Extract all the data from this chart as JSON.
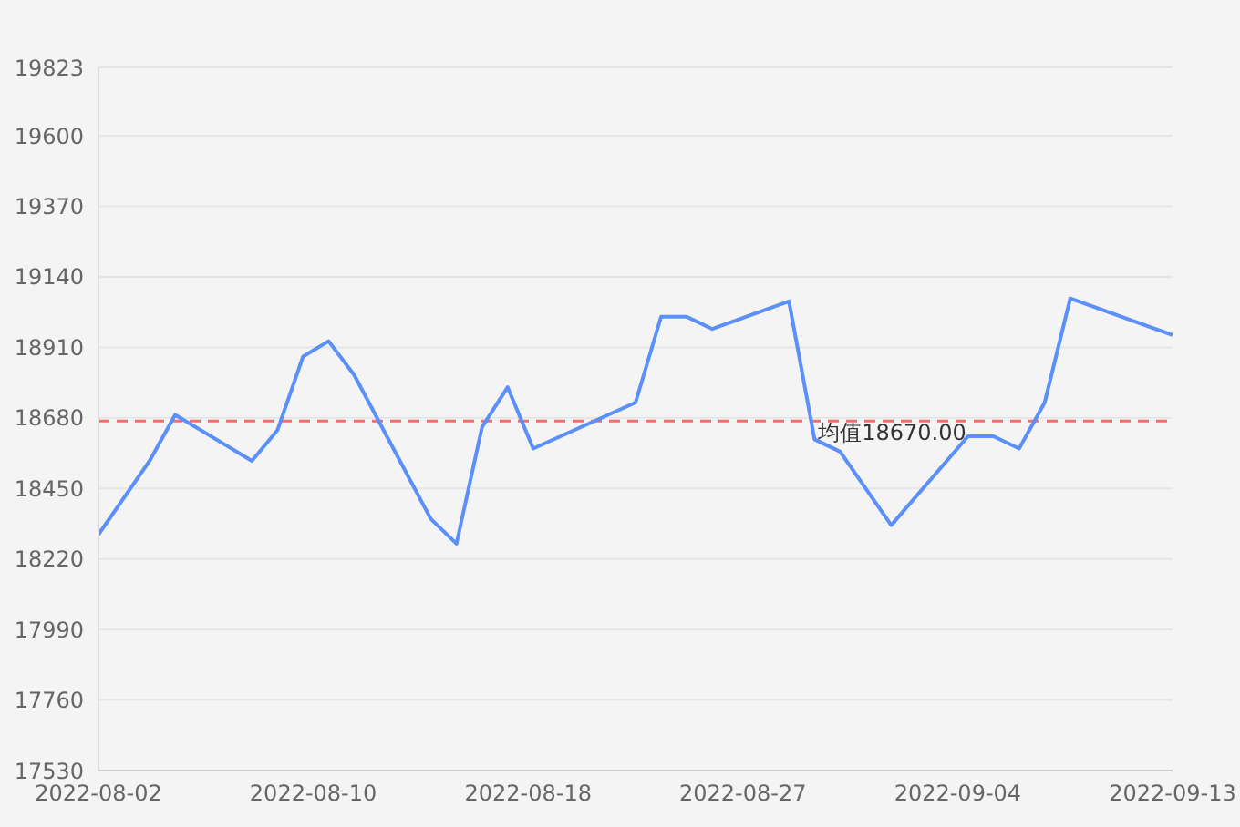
{
  "chart_data": {
    "type": "line",
    "x": [
      "2022-08-02",
      "2022-08-04",
      "2022-08-05",
      "2022-08-08",
      "2022-08-09",
      "2022-08-10",
      "2022-08-11",
      "2022-08-12",
      "2022-08-15",
      "2022-08-16",
      "2022-08-17",
      "2022-08-18",
      "2022-08-19",
      "2022-08-23",
      "2022-08-24",
      "2022-08-25",
      "2022-08-26",
      "2022-08-29",
      "2022-08-30",
      "2022-08-31",
      "2022-09-02",
      "2022-09-05",
      "2022-09-06",
      "2022-09-07",
      "2022-09-08",
      "2022-09-09",
      "2022-09-13"
    ],
    "series": [
      {
        "color": "#5b8ff9",
        "values": [
          18300,
          18540,
          18690,
          18540,
          18640,
          18880,
          18930,
          18820,
          18350,
          18270,
          18650,
          18780,
          18580,
          18730,
          19010,
          19010,
          18970,
          19060,
          18610,
          18570,
          18330,
          18620,
          18620,
          18580,
          18730,
          19070,
          18950
        ]
      }
    ],
    "xlim": [
      "2022-08-02",
      "2022-09-13"
    ],
    "xticks": [
      {
        "value": "2022-08-02",
        "label": "2022-08-02"
      },
      {
        "value": "2022-08-10T09:36",
        "label": "2022-08-10"
      },
      {
        "value": "2022-08-18T19:12",
        "label": "2022-08-18"
      },
      {
        "value": "2022-08-27T04:48",
        "label": "2022-08-27"
      },
      {
        "value": "2022-09-04T14:24",
        "label": "2022-09-04"
      },
      {
        "value": "2022-09-13",
        "label": "2022-09-13"
      }
    ],
    "ylim": [
      17530,
      19823
    ],
    "yticks": [
      17530,
      17760,
      17990,
      18220,
      18450,
      18680,
      18910,
      19140,
      19370,
      19600,
      19823
    ],
    "grid": "y",
    "marker": "none",
    "line_style": "solid",
    "ref_lines": [
      {
        "axis": "y",
        "value": 18670,
        "label": "均值18670.00",
        "color": "#f56c6c",
        "line_style": "dashed"
      }
    ]
  }
}
